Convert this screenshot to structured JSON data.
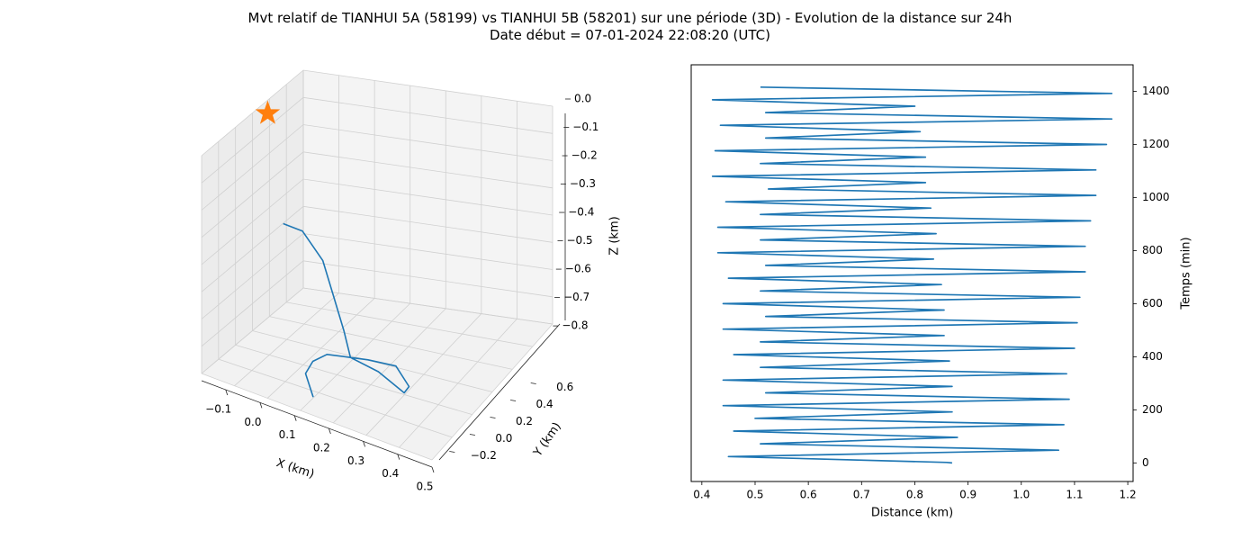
{
  "title": "Mvt relatif de TIANHUI 5A (58199) vs TIANHUI 5B (58201) sur une période (3D) - Evolution de la distance sur 24h",
  "subtitle": "Date début = 07-01-2024 22:08:20 (UTC)",
  "colors": {
    "series": "#1f77b4",
    "marker": "#ff7f0e",
    "pane": "#f2f2f2",
    "grid": "#d0d0d0"
  },
  "chart_data": [
    {
      "type": "scatter",
      "projection": "3d",
      "xlabel": "X (km)",
      "ylabel": "Y (km)",
      "zlabel": "Z (km)",
      "xlim": [
        -0.17,
        0.5
      ],
      "ylim": [
        -0.3,
        0.7
      ],
      "zlim": [
        -0.82,
        0.0
      ],
      "x_ticks": [
        "−0.1",
        "0.0",
        "0.1",
        "0.2",
        "0.3",
        "0.4",
        "0.5"
      ],
      "y_ticks": [
        "−0.2",
        "0.0",
        "0.2",
        "0.4",
        "0.6"
      ],
      "z_ticks": [
        "0.0",
        "−0.1",
        "−0.2",
        "−0.3",
        "−0.4",
        "−0.5",
        "−0.6",
        "−0.7",
        "−0.8"
      ],
      "grid": true,
      "star_marker": {
        "x": -0.17,
        "y": 0.35,
        "z": -0.05
      },
      "trajectory": [
        {
          "x": -0.11,
          "y": 0.3,
          "z": -0.42
        },
        {
          "x": -0.06,
          "y": 0.32,
          "z": -0.43
        },
        {
          "x": 0.02,
          "y": 0.25,
          "z": -0.48
        },
        {
          "x": 0.08,
          "y": 0.15,
          "z": -0.55
        },
        {
          "x": 0.14,
          "y": 0.05,
          "z": -0.62
        },
        {
          "x": 0.18,
          "y": -0.02,
          "z": -0.68
        },
        {
          "x": 0.24,
          "y": -0.05,
          "z": -0.65
        },
        {
          "x": 0.33,
          "y": -0.08,
          "z": -0.62
        },
        {
          "x": 0.38,
          "y": -0.12,
          "z": -0.66
        },
        {
          "x": 0.36,
          "y": -0.1,
          "z": -0.7
        },
        {
          "x": 0.27,
          "y": -0.05,
          "z": -0.68
        },
        {
          "x": 0.18,
          "y": -0.02,
          "z": -0.68
        },
        {
          "x": 0.1,
          "y": 0.02,
          "z": -0.72
        },
        {
          "x": 0.05,
          "y": 0.05,
          "z": -0.78
        },
        {
          "x": 0.02,
          "y": 0.08,
          "z": -0.85
        },
        {
          "x": 0.06,
          "y": 0.02,
          "z": -0.9
        }
      ]
    },
    {
      "type": "line",
      "xlabel": "Distance (km)",
      "ylabel": "Temps (min)",
      "xlim": [
        0.38,
        1.21
      ],
      "ylim": [
        -70,
        1500
      ],
      "x_ticks": [
        0.4,
        0.5,
        0.6,
        0.7,
        0.8,
        0.9,
        1.0,
        1.1,
        1.2
      ],
      "x_tick_labels": [
        "0.4",
        "0.5",
        "0.6",
        "0.7",
        "0.8",
        "0.9",
        "1.0",
        "1.1",
        "1.2"
      ],
      "y_ticks": [
        0,
        200,
        400,
        600,
        800,
        1000,
        1200,
        1400
      ],
      "y_tick_labels": [
        "0",
        "200",
        "400",
        "600",
        "800",
        "1000",
        "1200",
        "1400"
      ],
      "y_axis_side": "right",
      "grid": false,
      "x": [
        0.87,
        0.86,
        0.45,
        1.07,
        0.51,
        0.88,
        0.46,
        1.08,
        0.5,
        0.87,
        0.44,
        1.09,
        0.52,
        0.87,
        0.44,
        1.085,
        0.51,
        0.865,
        0.46,
        1.1,
        0.51,
        0.855,
        0.44,
        1.105,
        0.52,
        0.855,
        0.44,
        1.11,
        0.51,
        0.85,
        0.45,
        1.12,
        0.52,
        0.835,
        0.43,
        1.12,
        0.51,
        0.84,
        0.43,
        1.13,
        0.51,
        0.83,
        0.445,
        1.14,
        0.525,
        0.82,
        0.42,
        1.14,
        0.51,
        0.82,
        0.425,
        1.16,
        0.52,
        0.81,
        0.435,
        1.17,
        0.52,
        0.8,
        0.42,
        1.17,
        0.51
      ],
      "y": [
        0,
        2,
        24,
        48,
        72,
        96,
        120,
        144,
        168,
        192,
        216,
        240,
        264,
        288,
        312,
        336,
        360,
        384,
        408,
        432,
        456,
        480,
        504,
        528,
        552,
        576,
        600,
        624,
        648,
        672,
        696,
        720,
        744,
        768,
        792,
        816,
        840,
        864,
        888,
        912,
        936,
        960,
        984,
        1008,
        1032,
        1056,
        1080,
        1104,
        1128,
        1152,
        1176,
        1200,
        1224,
        1248,
        1272,
        1296,
        1320,
        1344,
        1368,
        1392,
        1416
      ]
    }
  ]
}
